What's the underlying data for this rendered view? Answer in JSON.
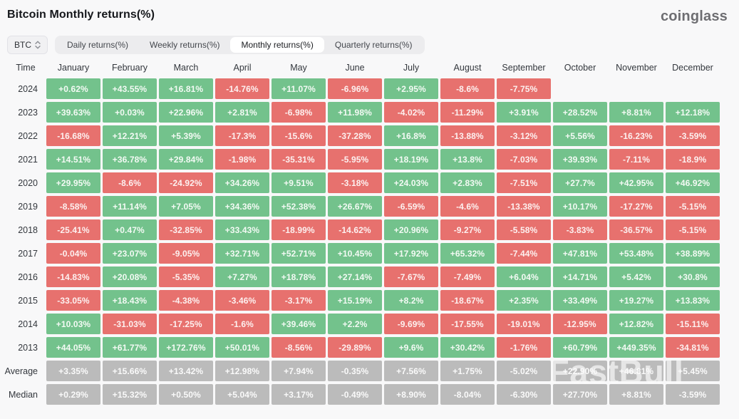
{
  "header": {
    "title": "Bitcoin Monthly returns(%)",
    "logo": "coinglass"
  },
  "controls": {
    "coin_selector": "BTC",
    "tabs": [
      {
        "label": "Daily returns(%)",
        "active": false
      },
      {
        "label": "Weekly returns(%)",
        "active": false
      },
      {
        "label": "Monthly returns(%)",
        "active": true
      },
      {
        "label": "Quarterly returns(%)",
        "active": false
      }
    ]
  },
  "watermark": "FastBull",
  "colors": {
    "positive": "#73c28c",
    "negative": "#e7716e",
    "neutral": "#bbbbbb"
  },
  "table": {
    "columns": [
      "Time",
      "January",
      "February",
      "March",
      "April",
      "May",
      "June",
      "July",
      "August",
      "September",
      "October",
      "November",
      "December"
    ],
    "rows": [
      {
        "label": "2024",
        "stat": false,
        "cells": [
          "+0.62%",
          "+43.55%",
          "+16.81%",
          "-14.76%",
          "+11.07%",
          "-6.96%",
          "+2.95%",
          "-8.6%",
          "-7.75%",
          "",
          "",
          ""
        ]
      },
      {
        "label": "2023",
        "stat": false,
        "cells": [
          "+39.63%",
          "+0.03%",
          "+22.96%",
          "+2.81%",
          "-6.98%",
          "+11.98%",
          "-4.02%",
          "-11.29%",
          "+3.91%",
          "+28.52%",
          "+8.81%",
          "+12.18%"
        ]
      },
      {
        "label": "2022",
        "stat": false,
        "cells": [
          "-16.68%",
          "+12.21%",
          "+5.39%",
          "-17.3%",
          "-15.6%",
          "-37.28%",
          "+16.8%",
          "-13.88%",
          "-3.12%",
          "+5.56%",
          "-16.23%",
          "-3.59%"
        ]
      },
      {
        "label": "2021",
        "stat": false,
        "cells": [
          "+14.51%",
          "+36.78%",
          "+29.84%",
          "-1.98%",
          "-35.31%",
          "-5.95%",
          "+18.19%",
          "+13.8%",
          "-7.03%",
          "+39.93%",
          "-7.11%",
          "-18.9%"
        ]
      },
      {
        "label": "2020",
        "stat": false,
        "cells": [
          "+29.95%",
          "-8.6%",
          "-24.92%",
          "+34.26%",
          "+9.51%",
          "-3.18%",
          "+24.03%",
          "+2.83%",
          "-7.51%",
          "+27.7%",
          "+42.95%",
          "+46.92%"
        ]
      },
      {
        "label": "2019",
        "stat": false,
        "cells": [
          "-8.58%",
          "+11.14%",
          "+7.05%",
          "+34.36%",
          "+52.38%",
          "+26.67%",
          "-6.59%",
          "-4.6%",
          "-13.38%",
          "+10.17%",
          "-17.27%",
          "-5.15%"
        ]
      },
      {
        "label": "2018",
        "stat": false,
        "cells": [
          "-25.41%",
          "+0.47%",
          "-32.85%",
          "+33.43%",
          "-18.99%",
          "-14.62%",
          "+20.96%",
          "-9.27%",
          "-5.58%",
          "-3.83%",
          "-36.57%",
          "-5.15%"
        ]
      },
      {
        "label": "2017",
        "stat": false,
        "cells": [
          "-0.04%",
          "+23.07%",
          "-9.05%",
          "+32.71%",
          "+52.71%",
          "+10.45%",
          "+17.92%",
          "+65.32%",
          "-7.44%",
          "+47.81%",
          "+53.48%",
          "+38.89%"
        ]
      },
      {
        "label": "2016",
        "stat": false,
        "cells": [
          "-14.83%",
          "+20.08%",
          "-5.35%",
          "+7.27%",
          "+18.78%",
          "+27.14%",
          "-7.67%",
          "-7.49%",
          "+6.04%",
          "+14.71%",
          "+5.42%",
          "+30.8%"
        ]
      },
      {
        "label": "2015",
        "stat": false,
        "cells": [
          "-33.05%",
          "+18.43%",
          "-4.38%",
          "-3.46%",
          "-3.17%",
          "+15.19%",
          "+8.2%",
          "-18.67%",
          "+2.35%",
          "+33.49%",
          "+19.27%",
          "+13.83%"
        ]
      },
      {
        "label": "2014",
        "stat": false,
        "cells": [
          "+10.03%",
          "-31.03%",
          "-17.25%",
          "-1.6%",
          "+39.46%",
          "+2.2%",
          "-9.69%",
          "-17.55%",
          "-19.01%",
          "-12.95%",
          "+12.82%",
          "-15.11%"
        ]
      },
      {
        "label": "2013",
        "stat": false,
        "cells": [
          "+44.05%",
          "+61.77%",
          "+172.76%",
          "+50.01%",
          "-8.56%",
          "-29.89%",
          "+9.6%",
          "+30.42%",
          "-1.76%",
          "+60.79%",
          "+449.35%",
          "-34.81%"
        ]
      },
      {
        "label": "Average",
        "stat": true,
        "cells": [
          "+3.35%",
          "+15.66%",
          "+13.42%",
          "+12.98%",
          "+7.94%",
          "-0.35%",
          "+7.56%",
          "+1.75%",
          "-5.02%",
          "+22.90%",
          "+46.81%",
          "+5.45%"
        ]
      },
      {
        "label": "Median",
        "stat": true,
        "cells": [
          "+0.29%",
          "+15.32%",
          "+0.50%",
          "+5.04%",
          "+3.17%",
          "-0.49%",
          "+8.90%",
          "-8.04%",
          "-6.30%",
          "+27.70%",
          "+8.81%",
          "-3.59%"
        ]
      }
    ]
  }
}
